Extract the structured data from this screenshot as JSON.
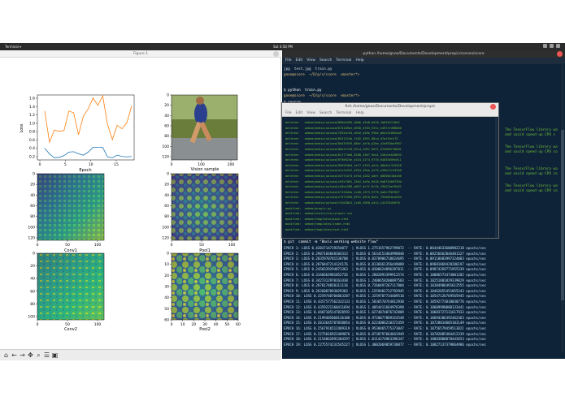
{
  "topbar": {
    "apps": "Terminal ▾",
    "clock": "Sat 4:58 PM"
  },
  "figure": {
    "title": "Figure 1",
    "ax1": {
      "xlabel": "Epoch",
      "ylabel": "Loss",
      "xticks": [
        "0",
        "5",
        "10",
        "15"
      ],
      "yticks": [
        "1.6",
        "1.4",
        "1.2",
        "1.0",
        "0.8",
        "0.6",
        "0.4",
        "0.2"
      ]
    },
    "ax2": {
      "xlabel": "Vision sample",
      "xticks": [
        "0",
        "100",
        "200"
      ],
      "yticks": [
        "0",
        "20",
        "40",
        "60",
        "80",
        "100",
        "120"
      ]
    },
    "ax3": {
      "xlabel": "Conv1",
      "xticks": [
        "0",
        "50",
        "100"
      ],
      "yticks": [
        "0",
        "20",
        "40",
        "60",
        "80",
        "100",
        "120"
      ]
    },
    "ax4": {
      "xlabel": "Pool1",
      "xticks": [
        "0",
        "50",
        "100"
      ],
      "yticks": [
        "0",
        "20",
        "40",
        "60",
        "80",
        "100",
        "120"
      ]
    },
    "ax5": {
      "xlabel": "Conv2",
      "xticks": [
        "0",
        "50",
        "100"
      ],
      "yticks": [
        "0",
        "20",
        "40",
        "60",
        "80",
        "100"
      ]
    },
    "ax6": {
      "xlabel": "Pool2",
      "xticks": [
        "0",
        "10",
        "20",
        "30",
        "40",
        "50",
        "60"
      ],
      "yticks": [
        "0",
        "10",
        "20",
        "30",
        "40",
        "50",
        "60"
      ]
    }
  },
  "toolbar": {
    "icons": [
      "home-icon",
      "back-icon",
      "forward-icon",
      "pan-icon",
      "zoom-icon",
      "configure-icon",
      "save-icon"
    ]
  },
  "terminal": {
    "title": "python /home/gnoe/Documents/Development/propic/scenes/score",
    "menu": [
      "File",
      "Edit",
      "View",
      "Search",
      "Terminal",
      "Help"
    ],
    "line1": "jpg  test.jpg  train.py",
    "line2": "gnoe@score  ~/D/p/s/score  <master*>",
    "line3": "$ python  train.py",
    "line4": "gnoe@score  ~/D/p/s/score  <master*>",
    "line5": "$ source ...",
    "right_notes": [
      "The TensorFlow library wa",
      "and could speed up CPU c",
      "The TensorFlow library wa",
      "and could speed up CPU co",
      "The TensorFlow library wa",
      "and could speed up CPU co",
      "The TensorFlow library wa",
      "and could speed up CPU co"
    ],
    "prompt_b": "gnoe@score  ~/D/propic  <master*>",
    "commit": "$ git  commit -m \"Basic working website flow\"",
    "epochs": [
      "EPOCH 1: LOSS 0.4203714719254077  | VLOSS 1.2751657962799072  -- RATE: 0.06444633600982218 epochs/sec",
      "EPOCH 2: LOSS 0.2907184848204333  | VLOSS 0.5634153404998848  -- RATE: 0.08256662046481327 epochs/sec",
      "EPOCH 3: LOSS 0.2035970781538788  | VLOSS 0.8370906718624695  -- RATE: 0.09118683997324083 epochs/sec",
      "EPOCH 4: LOSS 0.2070447214124176  | VLOSS 0.8136661356449089  -- RATE: 0.09681869428286197 epochs/sec",
      "EPOCH 5: LOSS 0.2450339294871363  | VLOSS 0.8300624896287811  -- RATE: 0.09874269771955339 epochs/sec",
      "EPOCH 6: LOSS 0.3346664901052726  | VLOSS 1.2802893399912574  -- RATE: 0.10086573474001202 epochs/sec",
      "EPOCH 7: LOSS 0.3427312970163438  | VLOSS 1.2408658200097583  -- RATE: 0.10251801829339029 epochs/sec",
      "EPOCH 8: LOSS 0.2870174050311116  | VLOSS 0.7260497267117004  -- RATE: 0.10384986491612555 epochs/sec",
      "EPOCH 9: LOSS 0.2626007093029303  | VLOSS 1.1559401712793945  -- RATE: 0.10462055451055243 epochs/sec",
      "EPOCH 10: LOSS 0.3259748704063287 | VLOSS 1.3259707734409510  -- RATE: 0.10547126769565945 epochs/sec",
      "EPOCH 11: LOSS 0.4357577562332133 | VLOSS 1.5836570744812930  -- RATE: 0.10592773818030776 epochs/sec",
      "EPOCH 12: LOSS 0.4359221160411694 | VLOSS 1.4054411664978398  -- RATE: 0.10609998080133441 epochs/sec",
      "EPOCH 13: LOSS 0.4407105147828592 | VLOSS 1.6274874076742809  -- RATE: 0.10683727131617933 epochs/sec",
      "EPOCH 14: LOSS 0.2199405060136108 | VLOSS 0.9720077889324548  -- RATE: 0.10694206392462363 epochs/sec",
      "EPOCH 15: LOSS 0.2013645787838054 | VLOSS 0.6224086210372459  -- RATE: 0.10728014005103149 epochs/sec",
      "EPOCH 16: LOSS 0.2567916512489319 | VLOSS 0.9530465775373047  -- RATE: 0.10756579459513821 epochs/sec",
      "EPOCH 17: LOSS 0.2275016922489076 | VLOSS 0.8738797664041949  -- RATE: 0.10782085484412339 epochs/sec",
      "EPOCH 18: LOSS 0.2154862892304297 | VLOSS 1.0114274963396347  -- RATE: 0.10883800878442653 epochs/sec",
      "EPOCH 19: LOSS 0.2275574231545227 | VLOSS 1.4002069059738877  -- RATE: 0.10827137379864986 epochs/sec"
    ]
  },
  "dialog": {
    "title": "fish  /home/gnoe/Documents/Development/propic",
    "menu": [
      "File",
      "Edit",
      "View",
      "Search",
      "Terminal",
      "Help"
    ],
    "lines": [
      "deleted:   webme/media/upload/060ae285_d0d6_45a8_b618_1b6545116d2",
      "deleted:   webme/media/upload/674109ee_0558_4783_925c_e497cfd98660",
      "deleted:   webme/media/upload/7634a7a5_e016_426e_93be_b64c51682ab5",
      "deleted:   webme/media/upload/8521214b_f182_4951_88cd_d7af1bfc75",
      "deleted:   webme/media/upload/8b435976_08af_4e7b_b2be_e2a953baf967",
      "deleted:   webme/media/upload/8bbf1f20_83c4_4261_9df1_575d20f18d01",
      "deleted:   webme/media/upload/8c7774b0_0288_4387_9ea1_320c0c810892",
      "deleted:   webme/media/upload/8f36624e_a324_4274_9770_64833d59c611",
      "deleted:   webme/media/upload/9b5594b4_1e77_4192_ae1e_48e6c1124328",
      "deleted:   webme/media/upload/a1c2434f_4934_49ae_a279_e39b7cfe33a0",
      "deleted:   webme/media/upload/a3771e74_b7b4_4262_ade7_08656e16dc66",
      "deleted:   webme/media/upload/c07e7d81_20e2_4e9e_9e28_0a8744b9739d",
      "deleted:   webme/media/upload/cd3ec289_a027_4c7f_9c7b_f9d27aef9a32",
      "deleted:   webme/media/upload/e7120d4a_2c60_4373_9779_da6c790f967",
      "deleted:   webme/media/upload/ef373289_8972_4070_8a41_792061bca454",
      "deleted:   webme/media/upload/f4103041_1cd5_4568_a3c2_c44762d26f0",
      "modified:  webme/propic.py",
      "modified:  webme/static/css/propic.css",
      "modified:  webme/templates/base.html",
      "modified:  webme/templates/index.html",
      "modified:  webme/templates/next.html"
    ]
  },
  "chart_data": [
    {
      "type": "line",
      "title": "",
      "xlabel": "Epoch",
      "ylabel": "Loss",
      "xlim": [
        0,
        19
      ],
      "ylim": [
        0.15,
        1.65
      ],
      "x": [
        1,
        2,
        3,
        4,
        5,
        6,
        7,
        8,
        9,
        10,
        11,
        12,
        13,
        14,
        15,
        16,
        17,
        18,
        19
      ],
      "series": [
        {
          "values": [
            0.42,
            0.29,
            0.2,
            0.21,
            0.25,
            0.33,
            0.34,
            0.29,
            0.26,
            0.33,
            0.44,
            0.44,
            0.44,
            0.22,
            0.2,
            0.26,
            0.23,
            0.22,
            0.23
          ],
          "color": "#1f77b4"
        },
        {
          "values": [
            1.28,
            0.56,
            0.84,
            0.81,
            0.83,
            1.28,
            1.24,
            0.73,
            1.16,
            1.33,
            1.58,
            1.41,
            1.63,
            0.97,
            0.62,
            0.95,
            0.87,
            1.01,
            1.4
          ],
          "color": "#ff7f0e"
        }
      ],
      "grid": false
    }
  ]
}
